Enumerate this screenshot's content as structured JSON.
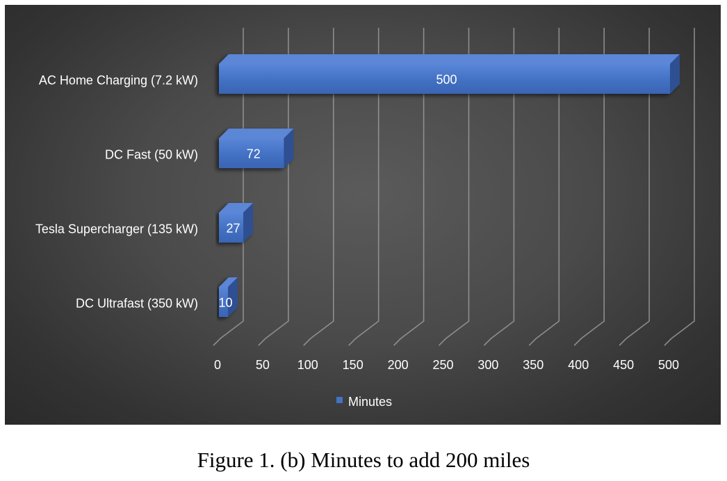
{
  "caption": "Figure 1. (b) Minutes to add 200 miles",
  "colors": {
    "bar_front": "#4472c4",
    "bar_top": "#5b86d6",
    "bar_side": "#2f4f91",
    "gridline": "#9a9a9a",
    "background": "#454545"
  },
  "chart_data": {
    "type": "bar",
    "orientation": "horizontal",
    "style": "3d-clustered",
    "categories": [
      "AC Home Charging (7.2 kW)",
      "DC Fast (50 kW)",
      "Tesla Supercharger (135 kW)",
      "DC Ultrafast (350 kW)"
    ],
    "series": [
      {
        "name": "Minutes",
        "values": [
          500,
          72,
          27,
          10
        ]
      }
    ],
    "data_labels": [
      "500",
      "72",
      "27",
      "10"
    ],
    "xticks": [
      "0",
      "50",
      "100",
      "150",
      "200",
      "250",
      "300",
      "350",
      "400",
      "450",
      "500"
    ],
    "xlim": [
      0,
      500
    ],
    "grid": true,
    "legend": "bottom"
  }
}
